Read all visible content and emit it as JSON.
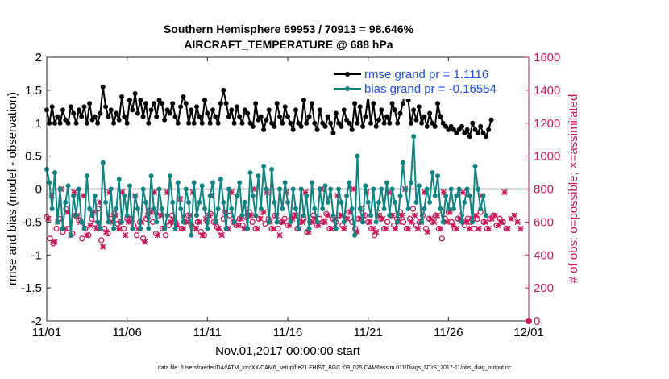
{
  "chart_data": {
    "type": "line",
    "title": "Southern Hemisphere 69953 / 70913 = 98.646%",
    "subtitle": "AIRCRAFT_TEMPERATURE @ 688 hPa",
    "xlabel": "Nov.01,2017 00:00:00 start",
    "ylabel_left": "rmse and bias (model - observation)",
    "ylabel_right": "# of obs: o=possible; ×=assimilated",
    "footnote": "data file: /Users/raeder/DAI/ATM_forcXX/CAM6_setup/f.e21.FHIST_BGC.f09_025.CAM6assim.011/Diags_NTrS_2017-11/obs_diag_output.nc",
    "xlim": [
      0,
      30
    ],
    "ylim_left": [
      -2,
      2
    ],
    "ylim_right": [
      0,
      1600
    ],
    "x_tick_labels": [
      "11/01",
      "11/06",
      "11/11",
      "11/16",
      "11/21",
      "11/26",
      "12/01"
    ],
    "y_left_ticks": [
      "2",
      "1.5",
      "1",
      "0.5",
      "0",
      "-0.5",
      "-1",
      "-1.5",
      "-2"
    ],
    "y_right_ticks": [
      "1600",
      "1400",
      "1200",
      "1000",
      "800",
      "600",
      "400",
      "200",
      "0"
    ],
    "legend": [
      {
        "label": "rmse grand pr = 1.1116",
        "color": "#000000"
      },
      {
        "label": "bias grand pr = -0.16554",
        "color": "#0f8282"
      }
    ],
    "zero_line": 0,
    "colors": {
      "rmse": "#000000",
      "bias": "#0f8282",
      "obs": "#c8195a",
      "zero": "#bdbdbd"
    },
    "series": [
      {
        "name": "rmse",
        "axis": "left",
        "values": [
          1.2,
          1.0,
          1.25,
          1.0,
          1.1,
          1.0,
          1.2,
          1.05,
          1.0,
          1.25,
          1.15,
          1.0,
          1.2,
          1.1,
          1.25,
          1.0,
          1.3,
          1.05,
          1.1,
          1.0,
          1.15,
          1.55,
          1.25,
          1.1,
          1.2,
          1.0,
          1.15,
          1.05,
          1.4,
          1.1,
          1.0,
          1.35,
          1.2,
          1.45,
          1.15,
          1.35,
          1.1,
          1.3,
          1.0,
          1.2,
          1.3,
          1.1,
          1.35,
          1.3,
          1.05,
          1.2,
          1.15,
          1.3,
          1.1,
          1.0,
          1.25,
          1.4,
          1.3,
          1.0,
          1.2,
          1.0,
          1.25,
          1.1,
          1.0,
          1.35,
          1.15,
          1.0,
          1.2,
          1.1,
          1.0,
          1.3,
          1.5,
          1.3,
          1.1,
          1.2,
          1.0,
          1.25,
          1.1,
          1.0,
          1.2,
          1.15,
          1.0,
          0.95,
          1.3,
          1.05,
          1.1,
          0.9,
          1.05,
          1.2,
          1.0,
          0.95,
          1.3,
          1.1,
          1.0,
          1.25,
          1.1,
          1.0,
          0.9,
          1.2,
          1.0,
          0.95,
          1.35,
          1.0,
          1.1,
          1.3,
          1.0,
          0.9,
          1.2,
          1.0,
          0.95,
          1.1,
          1.0,
          0.85,
          1.15,
          1.0,
          0.95,
          1.2,
          1.05,
          1.0,
          0.9,
          1.3,
          1.0,
          1.25,
          0.95,
          1.1,
          1.4,
          1.0,
          1.3,
          0.95,
          1.05,
          1.2,
          1.0,
          1.1,
          1.0,
          1.3,
          1.2,
          1.0,
          1.15,
          1.3,
          1.55,
          1.35,
          1.0,
          1.2,
          1.05,
          1.25,
          1.0,
          1.1,
          0.95,
          1.15,
          1.0,
          0.95,
          1.3,
          1.1,
          1.0,
          0.95,
          0.9,
          0.95,
          0.9,
          0.85,
          0.9,
          0.95,
          0.85,
          0.9,
          0.8,
          1.0,
          0.9,
          0.85,
          0.95,
          0.85,
          0.8,
          0.9,
          1.05
        ],
        "x_step": 0.16667
      },
      {
        "name": "bias",
        "axis": "left",
        "values": [
          0.3,
          0.1,
          -0.3,
          0.25,
          -0.5,
          0.0,
          -0.6,
          -0.2,
          0.05,
          -0.7,
          -0.1,
          -0.4,
          0.0,
          -0.5,
          -0.6,
          0.2,
          -0.3,
          -0.4,
          -0.1,
          -0.5,
          -0.6,
          0.4,
          -0.2,
          -0.5,
          0.0,
          -0.6,
          -0.3,
          0.15,
          -0.5,
          -0.1,
          -0.4,
          0.05,
          -0.6,
          -0.1,
          -0.3,
          -0.6,
          0.0,
          -0.2,
          -0.6,
          0.2,
          -0.3,
          -0.5,
          0.0,
          -0.3,
          -0.6,
          -0.4,
          0.2,
          -0.2,
          -0.6,
          0.1,
          -0.3,
          -0.5,
          0.0,
          -0.2,
          -0.7,
          0.1,
          -0.4,
          -0.2,
          0.05,
          -0.3,
          -0.6,
          -0.1,
          0.1,
          -0.5,
          -0.3,
          0.15,
          -0.2,
          -0.6,
          0.0,
          -0.3,
          -0.5,
          -0.1,
          0.1,
          -0.4,
          -0.2,
          -0.6,
          0.25,
          -0.1,
          -0.4,
          0.2,
          -0.3,
          0.35,
          0.0,
          -0.5,
          0.3,
          -0.2,
          -0.5,
          0.0,
          -0.3,
          0.1,
          -0.2,
          -0.5,
          0.0,
          -0.3,
          -0.6,
          0.0,
          -0.4,
          -0.1,
          -0.6,
          0.1,
          -0.3,
          -0.5,
          0.0,
          -0.3,
          0.05,
          -0.2,
          0.0,
          -0.4,
          -0.6,
          0.0,
          -0.2,
          -0.5,
          -0.1,
          0.1,
          -0.3,
          -0.7,
          0.5,
          -0.3,
          -0.5,
          0.05,
          -0.2,
          -0.4,
          0.0,
          -0.5,
          -0.2,
          0.0,
          -0.3,
          0.1,
          -0.4,
          0.0,
          -0.2,
          -0.5,
          -0.1,
          0.4,
          0.0,
          -0.3,
          0.1,
          0.8,
          -0.2,
          0.05,
          -0.5,
          -0.3,
          0.0,
          -0.2,
          0.25,
          -0.1,
          0.2,
          -0.3,
          -0.5,
          -0.1,
          -0.3,
          0.0,
          -0.3,
          -0.1,
          0.0,
          -0.5,
          -0.2,
          0.0,
          -0.1,
          -0.5,
          0.35,
          0.0,
          -0.3,
          -0.1,
          -0.4
        ],
        "x_step": 0.16667
      },
      {
        "name": "obs_possible",
        "axis": "right",
        "marker": "circle",
        "values": [
          630,
          500,
          470,
          560,
          620,
          540,
          680,
          560,
          530,
          640,
          610,
          500,
          560,
          520,
          620,
          590,
          680,
          490,
          560,
          530,
          620,
          650,
          590,
          600,
          560,
          620,
          620,
          580,
          520,
          600,
          500,
          620,
          670,
          600,
          530,
          660,
          560,
          520,
          580,
          640,
          600,
          560,
          560,
          600,
          640,
          580,
          560,
          600,
          540,
          520,
          600,
          650,
          600,
          570,
          540,
          620,
          560,
          640,
          600,
          580,
          620,
          580,
          630,
          660,
          600,
          560,
          620,
          660,
          590,
          620,
          560,
          640,
          560,
          600,
          620,
          580,
          620,
          640,
          560,
          600,
          620,
          540,
          600,
          640,
          580,
          620,
          600,
          650,
          560,
          620,
          600,
          640,
          580,
          620,
          660,
          600,
          560,
          620,
          680,
          640,
          600,
          560,
          520,
          660,
          620,
          560,
          600,
          640,
          580,
          620,
          660,
          600,
          560,
          620,
          680,
          580,
          600,
          640,
          560,
          620,
          600,
          640,
          560,
          500,
          620,
          660,
          600,
          560,
          620,
          640,
          580,
          620,
          600,
          560,
          620,
          660,
          600,
          560,
          620,
          640,
          580,
          620,
          600,
          560
        ],
        "x_step": 0.2
      },
      {
        "name": "obs_assimilated",
        "axis": "right",
        "marker": "x",
        "values": [
          620,
          760,
          480,
          600,
          800,
          560,
          660,
          520,
          780,
          640,
          600,
          760,
          520,
          580,
          660,
          560,
          720,
          450,
          540,
          780,
          600,
          640,
          560,
          780,
          520,
          600,
          620,
          760,
          560,
          600,
          480,
          640,
          660,
          780,
          520,
          640,
          560,
          780,
          600,
          620,
          580,
          740,
          560,
          600,
          640,
          780,
          560,
          600,
          520,
          620,
          640,
          760,
          600,
          560,
          520,
          660,
          560,
          780,
          600,
          580,
          620,
          560,
          640,
          640,
          800,
          560,
          620,
          660,
          780,
          600,
          560,
          640,
          520,
          600,
          780,
          580,
          620,
          640,
          560,
          600,
          780,
          540,
          600,
          620,
          580,
          800,
          600,
          640,
          560,
          620,
          760,
          640,
          560,
          620,
          660,
          800,
          540,
          620,
          640,
          780,
          600,
          560,
          540,
          640,
          620,
          560,
          780,
          640,
          560,
          600,
          640,
          800,
          560,
          600,
          640,
          560,
          600,
          780,
          540,
          620,
          600,
          640,
          560,
          780,
          600,
          660,
          580,
          560,
          620,
          780,
          600,
          560,
          620,
          640,
          560,
          760,
          600,
          560,
          620,
          640,
          580,
          600,
          780,
          560,
          620,
          640,
          600,
          560
        ],
        "x_step": 0.2
      }
    ]
  }
}
